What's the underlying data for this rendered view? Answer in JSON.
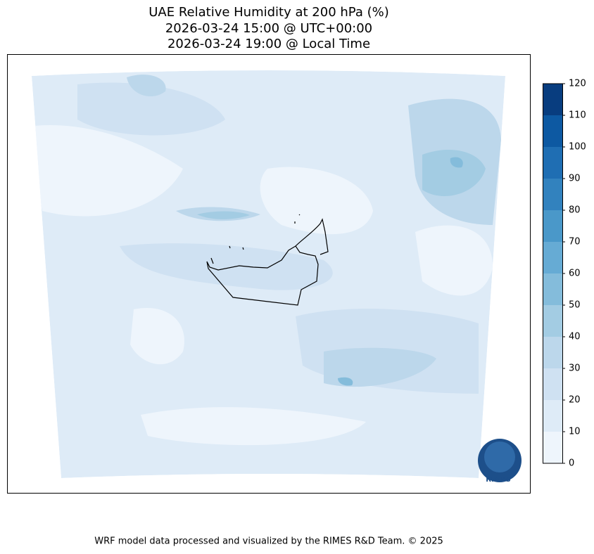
{
  "chart_data": {
    "type": "contour",
    "title": "UAE Relative Humidity at 200 hPa (%)",
    "subtitle": [
      "2026-03-24 15:00 @ UTC+00:00",
      "2026-03-24 19:00 @ Local Time"
    ],
    "clim": [
      0,
      120
    ],
    "cticks": [
      0,
      10,
      20,
      30,
      40,
      50,
      60,
      70,
      80,
      90,
      100,
      110,
      120
    ],
    "colors": [
      "#eef5fc",
      "#deebf7",
      "#cfe1f2",
      "#bcd7eb",
      "#a3cce3",
      "#84bcdb",
      "#66abd4",
      "#4a98c9",
      "#3282be",
      "#1f6eb3",
      "#0d59a2",
      "#083d7f"
    ],
    "logo": "RIMES",
    "footer": "WRF model data processed and visualized by the RIMES R&D Team. © 2025"
  }
}
